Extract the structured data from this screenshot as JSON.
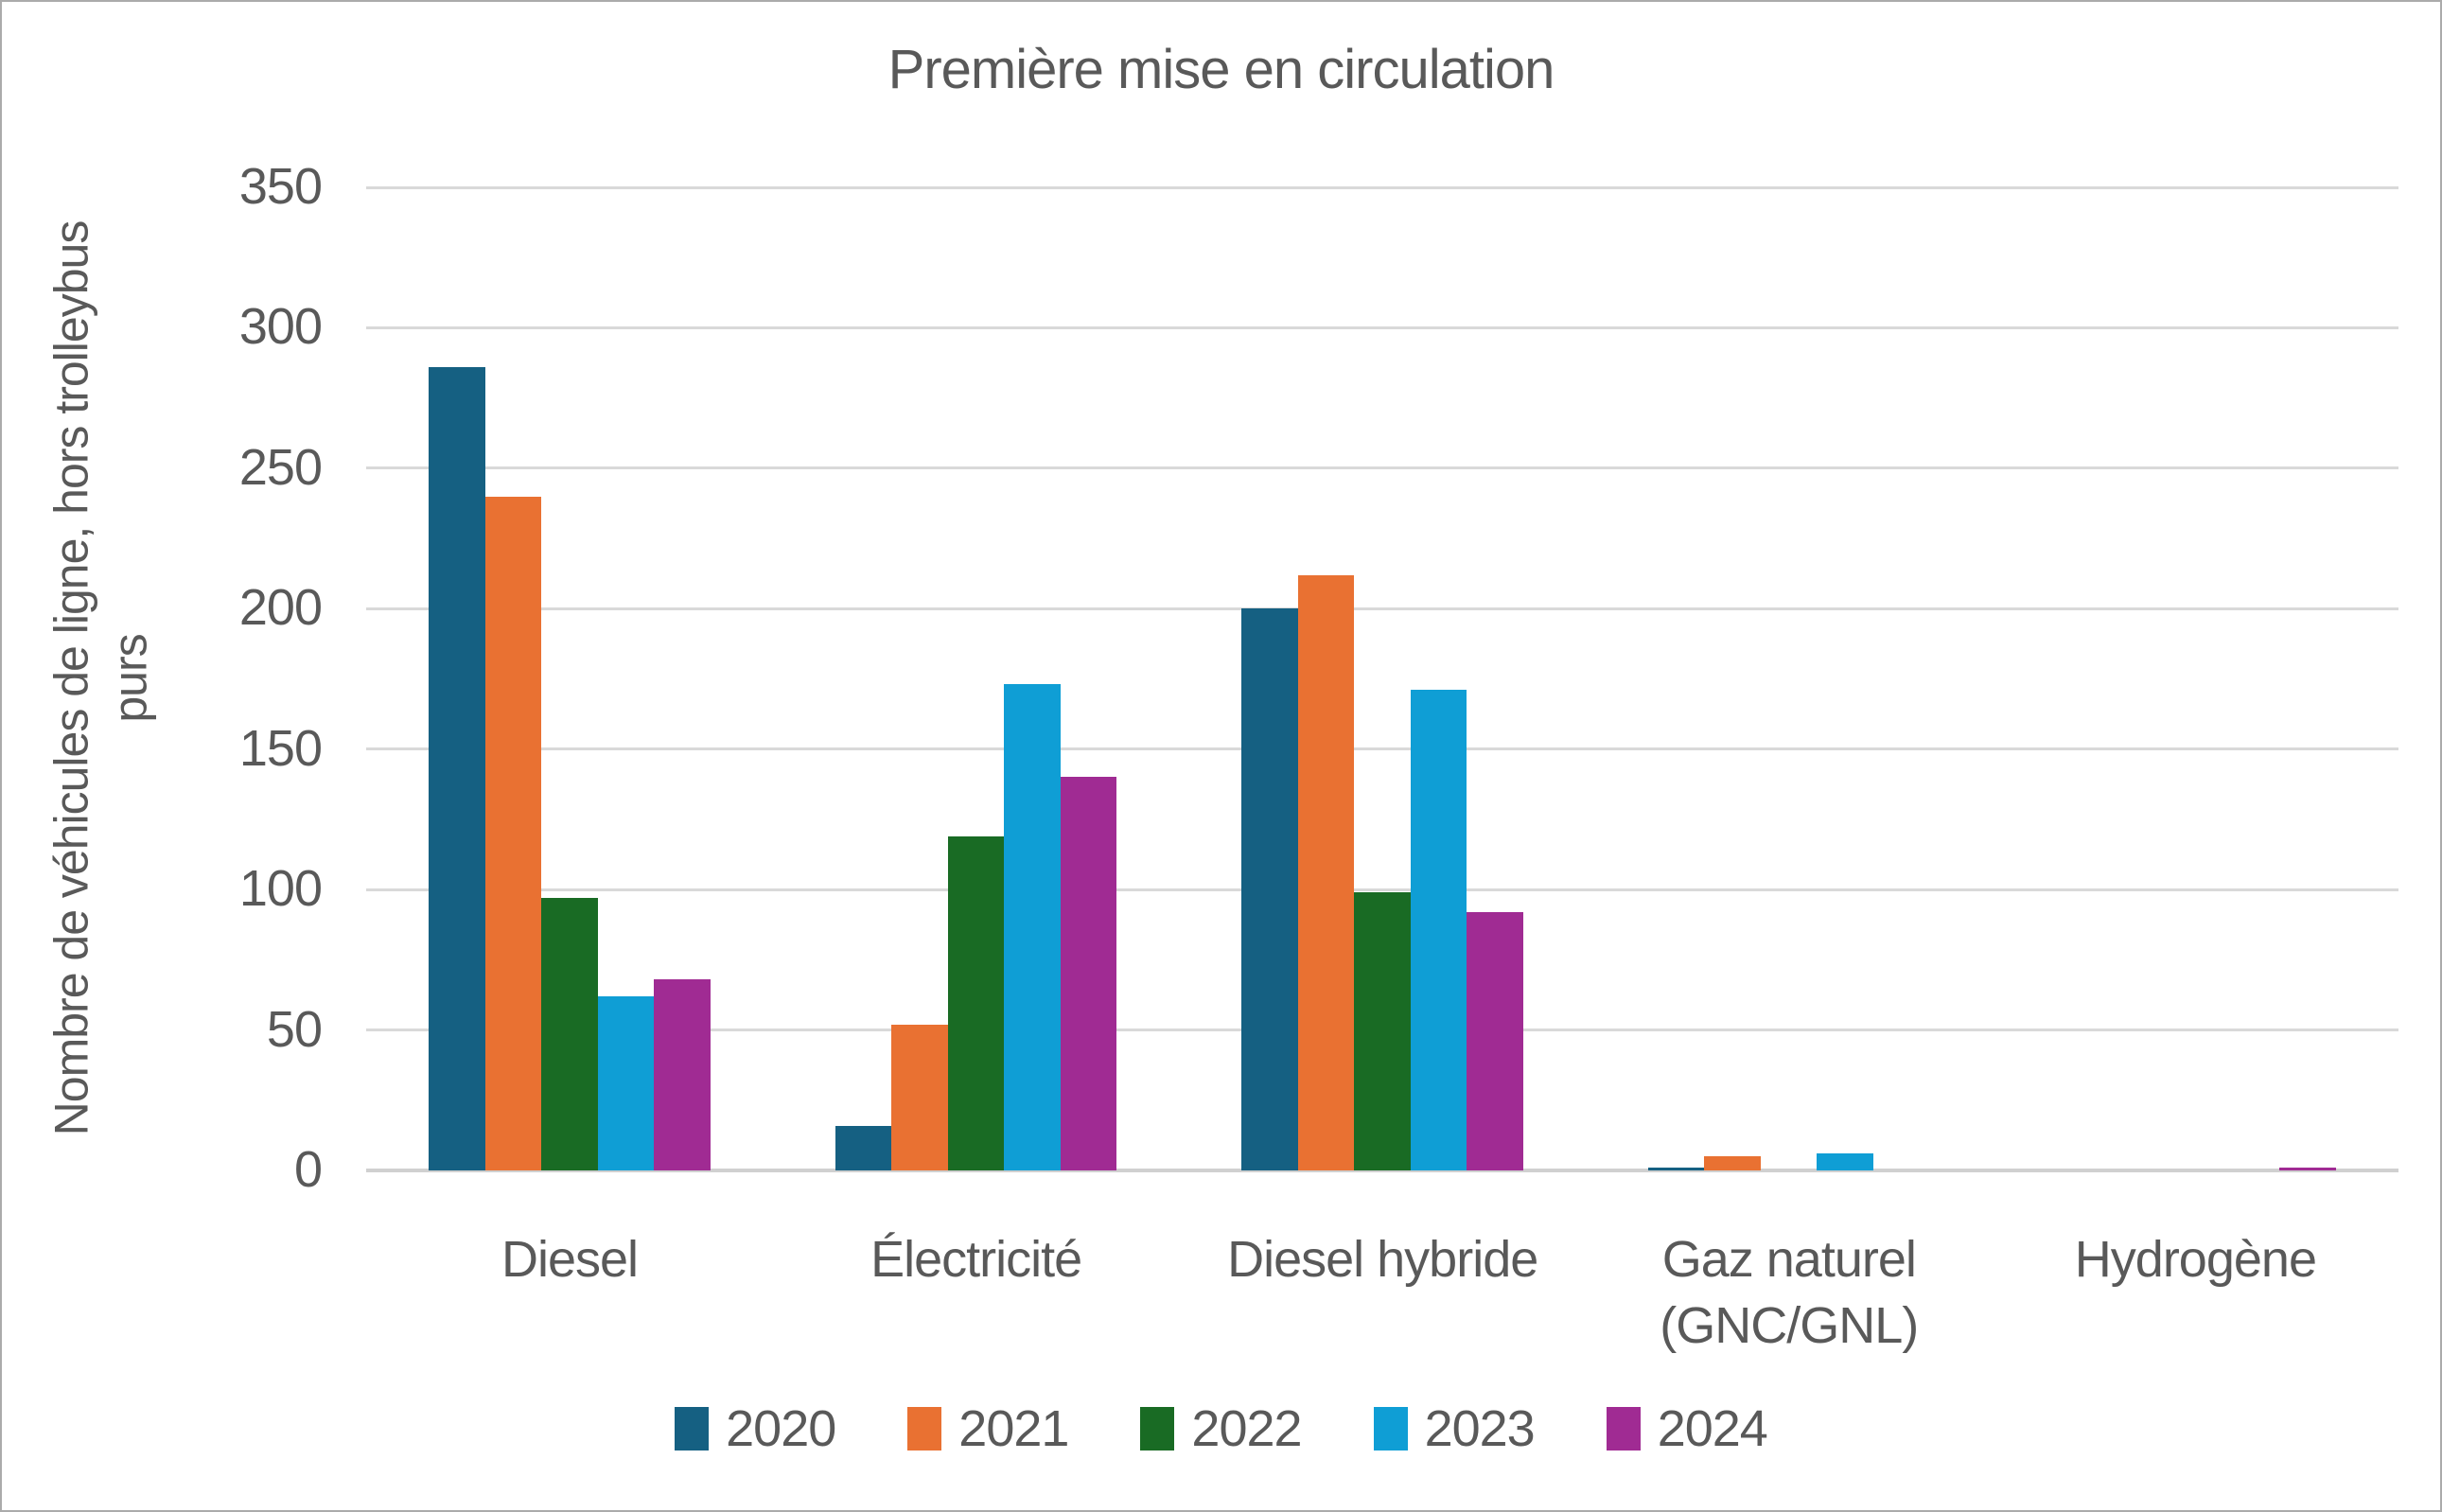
{
  "chart_data": {
    "type": "bar",
    "title": "Première mise en circulation",
    "ylabel": "Nombre de véhicules de ligne, hors trolleybus purs",
    "ylabel_lines": [
      "Nombre de véhicules de ligne, hors trolleybus",
      "purs"
    ],
    "xlabel": "",
    "categories": [
      "Diesel",
      "Électricité",
      "Diesel hybride",
      "Gaz naturel (GNC/GNL)",
      "Hydrogène"
    ],
    "series": [
      {
        "name": "2020",
        "color": "#156082",
        "values": [
          286,
          16,
          200,
          1,
          0
        ]
      },
      {
        "name": "2021",
        "color": "#E97132",
        "values": [
          240,
          52,
          212,
          5,
          0
        ]
      },
      {
        "name": "2022",
        "color": "#196B24",
        "values": [
          97,
          119,
          99,
          0,
          0
        ]
      },
      {
        "name": "2023",
        "color": "#0F9ED5",
        "values": [
          62,
          173,
          171,
          6,
          0
        ]
      },
      {
        "name": "2024",
        "color": "#A02B93",
        "values": [
          68,
          140,
          92,
          0,
          1
        ]
      }
    ],
    "ylim": [
      0,
      350
    ],
    "yticks": [
      0,
      50,
      100,
      150,
      200,
      250,
      300,
      350
    ],
    "grid": "horizontal",
    "legend_position": "bottom"
  },
  "styles": {
    "text_color": "#595959",
    "gridline_color": "#D9D9D9",
    "axis_line_color": "#D0D0D0",
    "frame_border_color": "#ABABAB",
    "background": "#FFFFFF"
  }
}
